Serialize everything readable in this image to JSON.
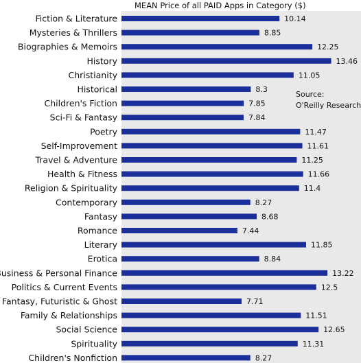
{
  "chart_data": {
    "type": "bar",
    "orientation": "horizontal",
    "title": "MEAN Price of all PAID Apps in Category ($)",
    "annotation": [
      "Source:",
      "O'Reilly Research"
    ],
    "categories": [
      "Fiction & Literature",
      "Mysteries & Thrillers",
      "Biographies & Memoirs",
      "History",
      "Christianity",
      "Historical",
      "Children's Fiction",
      "Sci-Fi & Fantasy",
      "Poetry",
      "Self-Improvement",
      "Travel & Adventure",
      "Health & Fitness",
      "Religion & Spirituality",
      "Contemporary",
      "Fantasy",
      "Romance",
      "Literary",
      "Erotica",
      "Business & Personal Finance",
      "Politics & Current Events",
      "Fantasy, Futuristic & Ghost",
      "Family & Relationships",
      "Social Science",
      "Spirituality",
      "Children's Nonfiction"
    ],
    "values": [
      10.14,
      8.85,
      12.25,
      13.46,
      11.05,
      8.3,
      7.85,
      7.84,
      11.47,
      11.61,
      11.25,
      11.66,
      11.4,
      8.27,
      8.68,
      7.44,
      11.85,
      8.84,
      13.22,
      12.5,
      7.71,
      11.51,
      12.65,
      11.31,
      8.27
    ],
    "value_labels": [
      "10.14",
      "8.85",
      "12.25",
      "13.46",
      "11.05",
      "8.3",
      "7.85",
      "7.84",
      "11.47",
      "11.61",
      "11.25",
      "11.66",
      "11.4",
      "8.27",
      "8.68",
      "7.44",
      "11.85",
      "8.84",
      "13.22",
      "12.5",
      "7.71",
      "11.51",
      "12.65",
      "11.31",
      "8.27"
    ],
    "xlim": [
      0,
      15
    ],
    "grid": false,
    "bar_color": "#1a2f9a",
    "plot_background": "#e9e9e9"
  }
}
